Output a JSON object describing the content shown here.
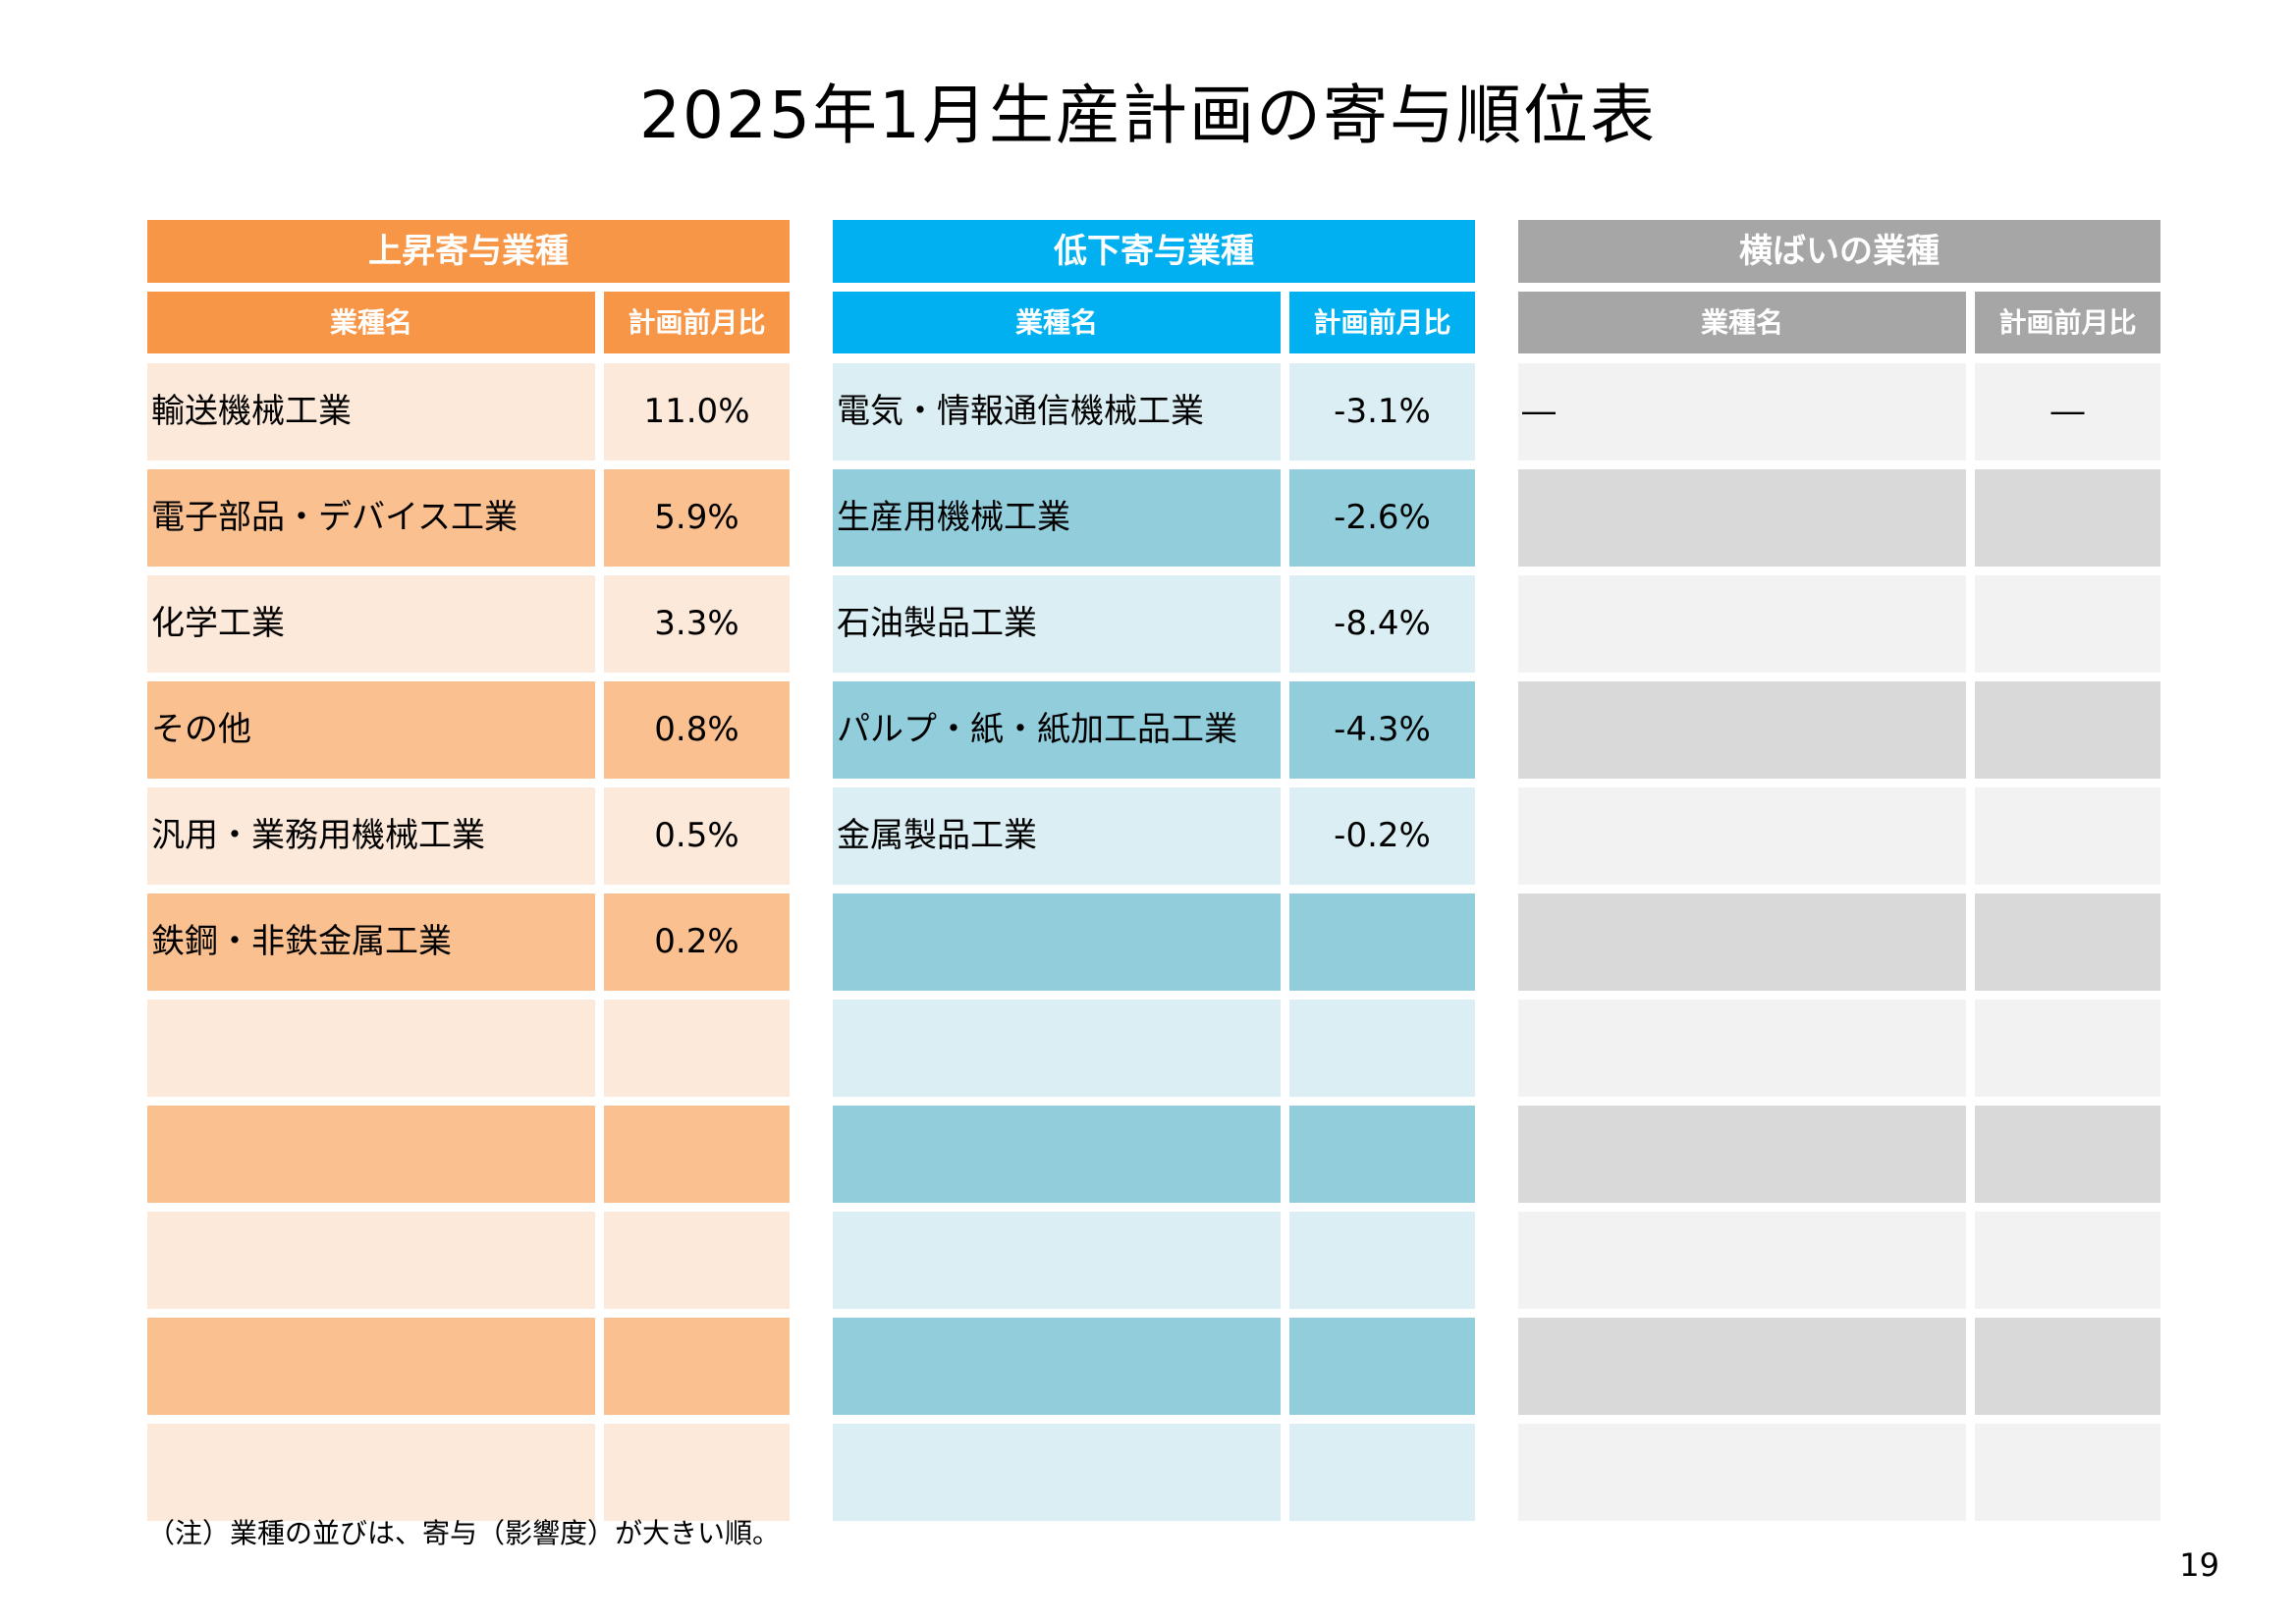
{
  "title": "2025年1月生産計画の寄与順位表",
  "colors": {
    "rise_header": "#F79646",
    "rise_light": "#FDE9D9",
    "rise_dark": "#FAC090",
    "fall_header": "#00B0F0",
    "fall_light": "#DAEEF3",
    "fall_dark": "#92CDDC",
    "flat_header": "#A6A6A6",
    "flat_light": "#F2F2F2",
    "flat_dark": "#D9D9D9"
  },
  "panels": [
    {
      "key": "rise",
      "title": "上昇寄与業種",
      "col_name": "業種名",
      "col_value": "計画前月比",
      "rows": [
        {
          "name": "輸送機械工業",
          "value": "11.0%"
        },
        {
          "name": "電子部品・デバイス工業",
          "value": "5.9%"
        },
        {
          "name": "化学工業",
          "value": "3.3%"
        },
        {
          "name": "その他",
          "value": "0.8%"
        },
        {
          "name": "汎用・業務用機械工業",
          "value": "0.5%"
        },
        {
          "name": "鉄鋼・非鉄金属工業",
          "value": "0.2%"
        },
        {
          "name": "",
          "value": ""
        },
        {
          "name": "",
          "value": ""
        },
        {
          "name": "",
          "value": ""
        },
        {
          "name": "",
          "value": ""
        },
        {
          "name": "",
          "value": ""
        }
      ]
    },
    {
      "key": "fall",
      "title": "低下寄与業種",
      "col_name": "業種名",
      "col_value": "計画前月比",
      "rows": [
        {
          "name": "電気・情報通信機械工業",
          "value": "-3.1%"
        },
        {
          "name": "生産用機械工業",
          "value": "-2.6%"
        },
        {
          "name": "石油製品工業",
          "value": "-8.4%"
        },
        {
          "name": "パルプ・紙・紙加工品工業",
          "value": "-4.3%"
        },
        {
          "name": "金属製品工業",
          "value": "-0.2%"
        },
        {
          "name": "",
          "value": ""
        },
        {
          "name": "",
          "value": ""
        },
        {
          "name": "",
          "value": ""
        },
        {
          "name": "",
          "value": ""
        },
        {
          "name": "",
          "value": ""
        },
        {
          "name": "",
          "value": ""
        }
      ]
    },
    {
      "key": "flat",
      "title": "横ばいの業種",
      "col_name": "業種名",
      "col_value": "計画前月比",
      "rows": [
        {
          "name": "―",
          "value": "―"
        },
        {
          "name": "",
          "value": ""
        },
        {
          "name": "",
          "value": ""
        },
        {
          "name": "",
          "value": ""
        },
        {
          "name": "",
          "value": ""
        },
        {
          "name": "",
          "value": ""
        },
        {
          "name": "",
          "value": ""
        },
        {
          "name": "",
          "value": ""
        },
        {
          "name": "",
          "value": ""
        },
        {
          "name": "",
          "value": ""
        },
        {
          "name": "",
          "value": ""
        }
      ]
    }
  ],
  "note": "（注）業種の並びは、寄与（影響度）が大きい順。",
  "page_number": "19"
}
